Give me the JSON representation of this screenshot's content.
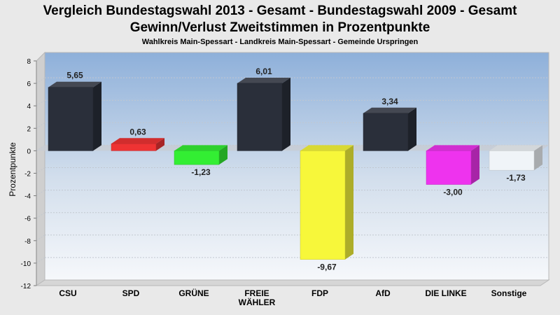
{
  "chart_data": {
    "type": "bar",
    "title": "Vergleich Bundestagswahl 2013 - Gesamt - Bundestagswahl 2009 - Gesamt",
    "title2": "Gewinn/Verlust Zweitstimmen in Prozentpunkte",
    "subtitle": "Wahlkreis Main-Spessart - Landkreis Main-Spessart - Gemeinde Urspringen",
    "ylabel": "Prozentpunkte",
    "xlabel": "",
    "ylim": [
      -12,
      8
    ],
    "yticks": [
      "8",
      "6",
      "4",
      "2",
      "0",
      "-2",
      "-4",
      "-6",
      "-8",
      "-10",
      "-12"
    ],
    "categories": [
      "CSU",
      "SPD",
      "GRÜNE",
      "FREIE WÄHLER",
      "FDP",
      "AfD",
      "DIE LINKE",
      "Sonstige"
    ],
    "category_lines": [
      [
        "CSU"
      ],
      [
        "SPD"
      ],
      [
        "GRÜNE"
      ],
      [
        "FREIE",
        "WÄHLER"
      ],
      [
        "FDP"
      ],
      [
        "AfD"
      ],
      [
        "DIE LINKE"
      ],
      [
        "Sonstige"
      ]
    ],
    "values": [
      5.65,
      0.63,
      -1.23,
      6.01,
      -9.67,
      3.34,
      -3.0,
      -1.73
    ],
    "value_labels": [
      "5,65",
      "0,63",
      "-1,23",
      "6,01",
      "-9,67",
      "3,34",
      "-3,00",
      "-1,73"
    ],
    "colors": [
      "#2a2f3a",
      "#ee3333",
      "#33ee33",
      "#2a2f3a",
      "#f7f73a",
      "#2a2f3a",
      "#ee33ee",
      "#f0f4f8"
    ],
    "grid": true,
    "legend": "none"
  }
}
